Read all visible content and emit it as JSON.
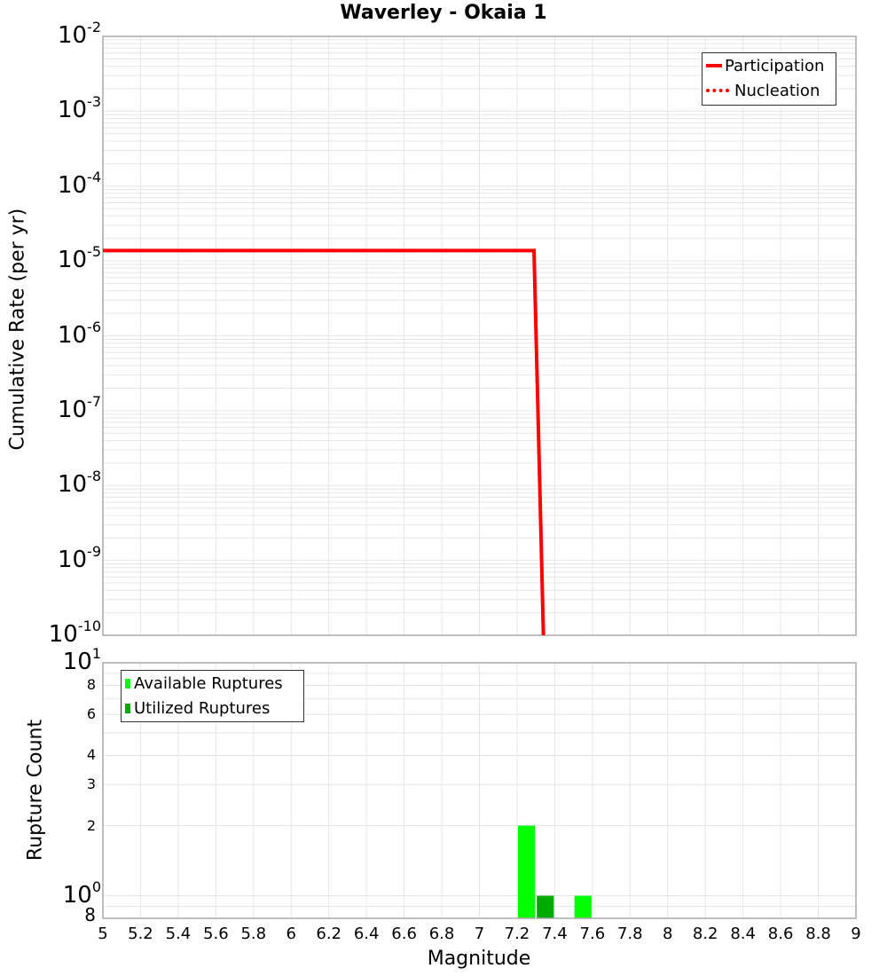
{
  "chart_data": [
    {
      "type": "line",
      "title": "Waverley - Okaia 1",
      "xlabel": "Magnitude",
      "ylabel": "Cumulative Rate (per yr)",
      "yscale": "log",
      "xlim": [
        5,
        9
      ],
      "ylim": [
        1e-10,
        0.01
      ],
      "y_tick_labels": [
        "10^-2",
        "10^-3",
        "10^-4",
        "10^-5",
        "10^-6",
        "10^-7",
        "10^-8",
        "10^-9",
        "10^-10"
      ],
      "grid": true,
      "legend_position": "upper right",
      "series": [
        {
          "name": "Participation",
          "color": "#ff0000",
          "style": "solid",
          "x": [
            5.0,
            7.29,
            7.34
          ],
          "y": [
            1.38e-05,
            1.38e-05,
            1e-10
          ]
        },
        {
          "name": "Nucleation",
          "color": "#ff0000",
          "style": "dotted",
          "x": [
            5.0,
            7.29,
            7.34
          ],
          "y": [
            1.38e-05,
            1.38e-05,
            1e-10
          ]
        }
      ]
    },
    {
      "type": "bar",
      "xlabel": "Magnitude",
      "ylabel": "Rupture Count",
      "yscale": "log",
      "xlim": [
        5,
        9
      ],
      "ylim": [
        0.8,
        10
      ],
      "x_tick_labels": [
        "5",
        "5.2",
        "5.4",
        "5.6",
        "5.8",
        "6",
        "6.2",
        "6.4",
        "6.6",
        "6.8",
        "7",
        "7.2",
        "7.4",
        "7.6",
        "7.8",
        "8",
        "8.2",
        "8.4",
        "8.6",
        "8.8",
        "9"
      ],
      "y_tick_labels": [
        "10^1",
        "8",
        "6",
        "4",
        "3",
        "2",
        "10^0",
        "8"
      ],
      "grid": true,
      "legend_position": "upper left",
      "series": [
        {
          "name": "Available Ruptures",
          "color": "#00ff00",
          "bins": [
            {
              "x0": 7.2,
              "x1": 7.3,
              "count": 2
            },
            {
              "x0": 7.5,
              "x1": 7.6,
              "count": 1
            }
          ]
        },
        {
          "name": "Utilized Ruptures",
          "color": "#00aa00",
          "bins": [
            {
              "x0": 7.3,
              "x1": 7.4,
              "count": 1
            }
          ]
        }
      ]
    }
  ],
  "title": "Waverley - Okaia 1",
  "top": {
    "ylabel": "Cumulative Rate (per yr)",
    "yticks": [
      {
        "base": "10",
        "exp": "-2"
      },
      {
        "base": "10",
        "exp": "-3"
      },
      {
        "base": "10",
        "exp": "-4"
      },
      {
        "base": "10",
        "exp": "-5"
      },
      {
        "base": "10",
        "exp": "-6"
      },
      {
        "base": "10",
        "exp": "-7"
      },
      {
        "base": "10",
        "exp": "-8"
      },
      {
        "base": "10",
        "exp": "-9"
      },
      {
        "base": "10",
        "exp": "-10"
      }
    ],
    "legend": [
      {
        "label": "Participation"
      },
      {
        "label": "Nucleation"
      }
    ]
  },
  "bottom": {
    "ylabel": "Rupture Count",
    "yticks_major": [
      {
        "base": "10",
        "exp": "1"
      },
      {
        "base": "10",
        "exp": "0"
      }
    ],
    "yticks_minor": [
      "8",
      "6",
      "4",
      "3",
      "2",
      "8"
    ],
    "legend": [
      {
        "label": "Available Ruptures"
      },
      {
        "label": "Utilized Ruptures"
      }
    ]
  },
  "xlabel": "Magnitude",
  "xticks": [
    "5",
    "5.2",
    "5.4",
    "5.6",
    "5.8",
    "6",
    "6.2",
    "6.4",
    "6.6",
    "6.8",
    "7",
    "7.2",
    "7.4",
    "7.6",
    "7.8",
    "8",
    "8.2",
    "8.4",
    "8.6",
    "8.8",
    "9"
  ],
  "colors": {
    "line": "#ff0000",
    "available": "#00ff00",
    "utilized": "#00aa00",
    "grid": "#e6e6e6",
    "frame": "#aaaaaa"
  }
}
